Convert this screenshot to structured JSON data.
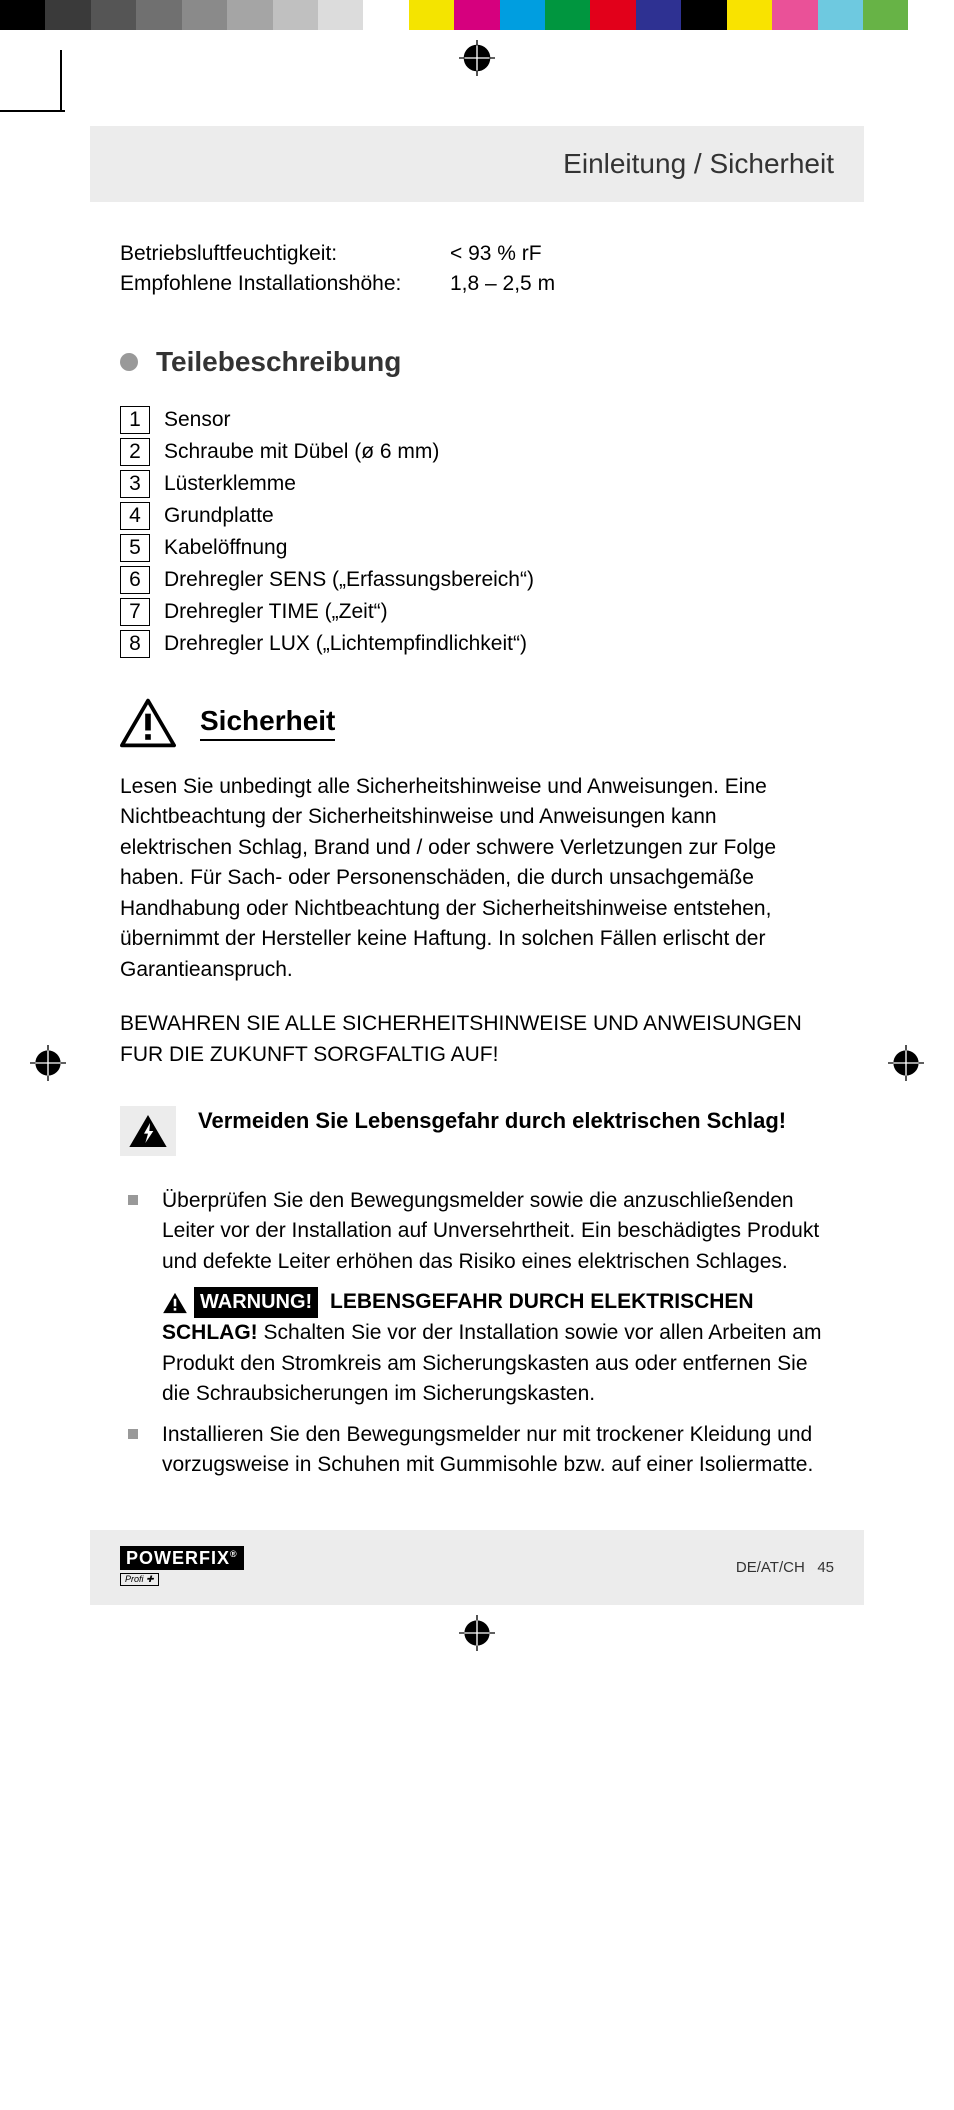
{
  "colorbar": [
    "#000000",
    "#3a3a3a",
    "#555555",
    "#707070",
    "#8a8a8a",
    "#a5a5a5",
    "#c0c0c0",
    "#dcdcdc",
    "#ffffff",
    "#f4e400",
    "#d6007e",
    "#009ee0",
    "#00963f",
    "#e2001a",
    "#2e3192",
    "#000000",
    "#f9e300",
    "#ea5198",
    "#6ec9e0",
    "#67b346",
    "#ffffff"
  ],
  "header": "Einleitung / Sicherheit",
  "specs": [
    {
      "label": "Betriebsluftfeuchtigkeit:",
      "value": "< 93 % rF"
    },
    {
      "label": "Empfohlene Installationshöhe:",
      "value": "1,8 – 2,5 m"
    }
  ],
  "parts_heading": "Teilebeschreibung",
  "parts": [
    {
      "n": "1",
      "t": "Sensor"
    },
    {
      "n": "2",
      "t": "Schraube mit Dübel (ø 6 mm)"
    },
    {
      "n": "3",
      "t": "Lüsterklemme"
    },
    {
      "n": "4",
      "t": "Grundplatte"
    },
    {
      "n": "5",
      "t": "Kabelöffnung"
    },
    {
      "n": "6",
      "t": "Drehregler SENS („Erfassungsbereich“)"
    },
    {
      "n": "7",
      "t": "Drehregler TIME („Zeit“)"
    },
    {
      "n": "8",
      "t": "Drehregler LUX („Lichtempfindlichkeit“)"
    }
  ],
  "safety_heading": "Sicherheit",
  "safety_body": "Lesen Sie unbedingt alle Sicherheitshinweise und Anweisungen. Eine Nichtbeachtung der Sicherheitshinweise und Anweisungen kann elektrischen Schlag, Brand und / oder schwere Verletzungen zur Folge haben. Für Sach- oder Personenschäden, die durch unsachgemäße Handhabung oder Nichtbeachtung der Sicherheitshinweise entstehen, übernimmt der Hersteller keine Haftung. In solchen Fällen erlischt der Garantieanspruch.",
  "safety_keep": "BEWAHREN SIE ALLE SICHERHEITSHINWEISE UND ANWEISUNGEN FUR DIE ZUKUNFT SORGFALTIG AUF!",
  "shock_heading": "Vermeiden Sie Lebensgefahr durch elektrischen Schlag!",
  "bullets": {
    "b1": "Überprüfen Sie den Bewegungsmelder sowie die anzuschließenden Leiter vor der Installation auf Unversehrtheit. Ein beschädigtes Produkt und defekte Leiter erhöhen das Risiko eines elektrischen Schlages.",
    "b2_warn": "WARNUNG!",
    "b2_bold": " LEBENSGEFAHR DURCH ELEKTRISCHEN SCHLAG!",
    "b2_rest": " Schalten Sie vor der Installation sowie vor allen Arbeiten am Produkt den Stromkreis am Sicherungskasten aus oder entfernen Sie die Schraubsicherungen im Sicherungskasten.",
    "b3": "Installieren Sie den Bewegungsmelder nur mit trockener Kleidung und vorzugsweise in Schuhen mit Gummisohle bzw. auf einer Isoliermatte."
  },
  "brand_main": "POWERFIX",
  "brand_sub": "Profi ✚",
  "footer_lang": "DE/AT/CH",
  "footer_page": "45"
}
